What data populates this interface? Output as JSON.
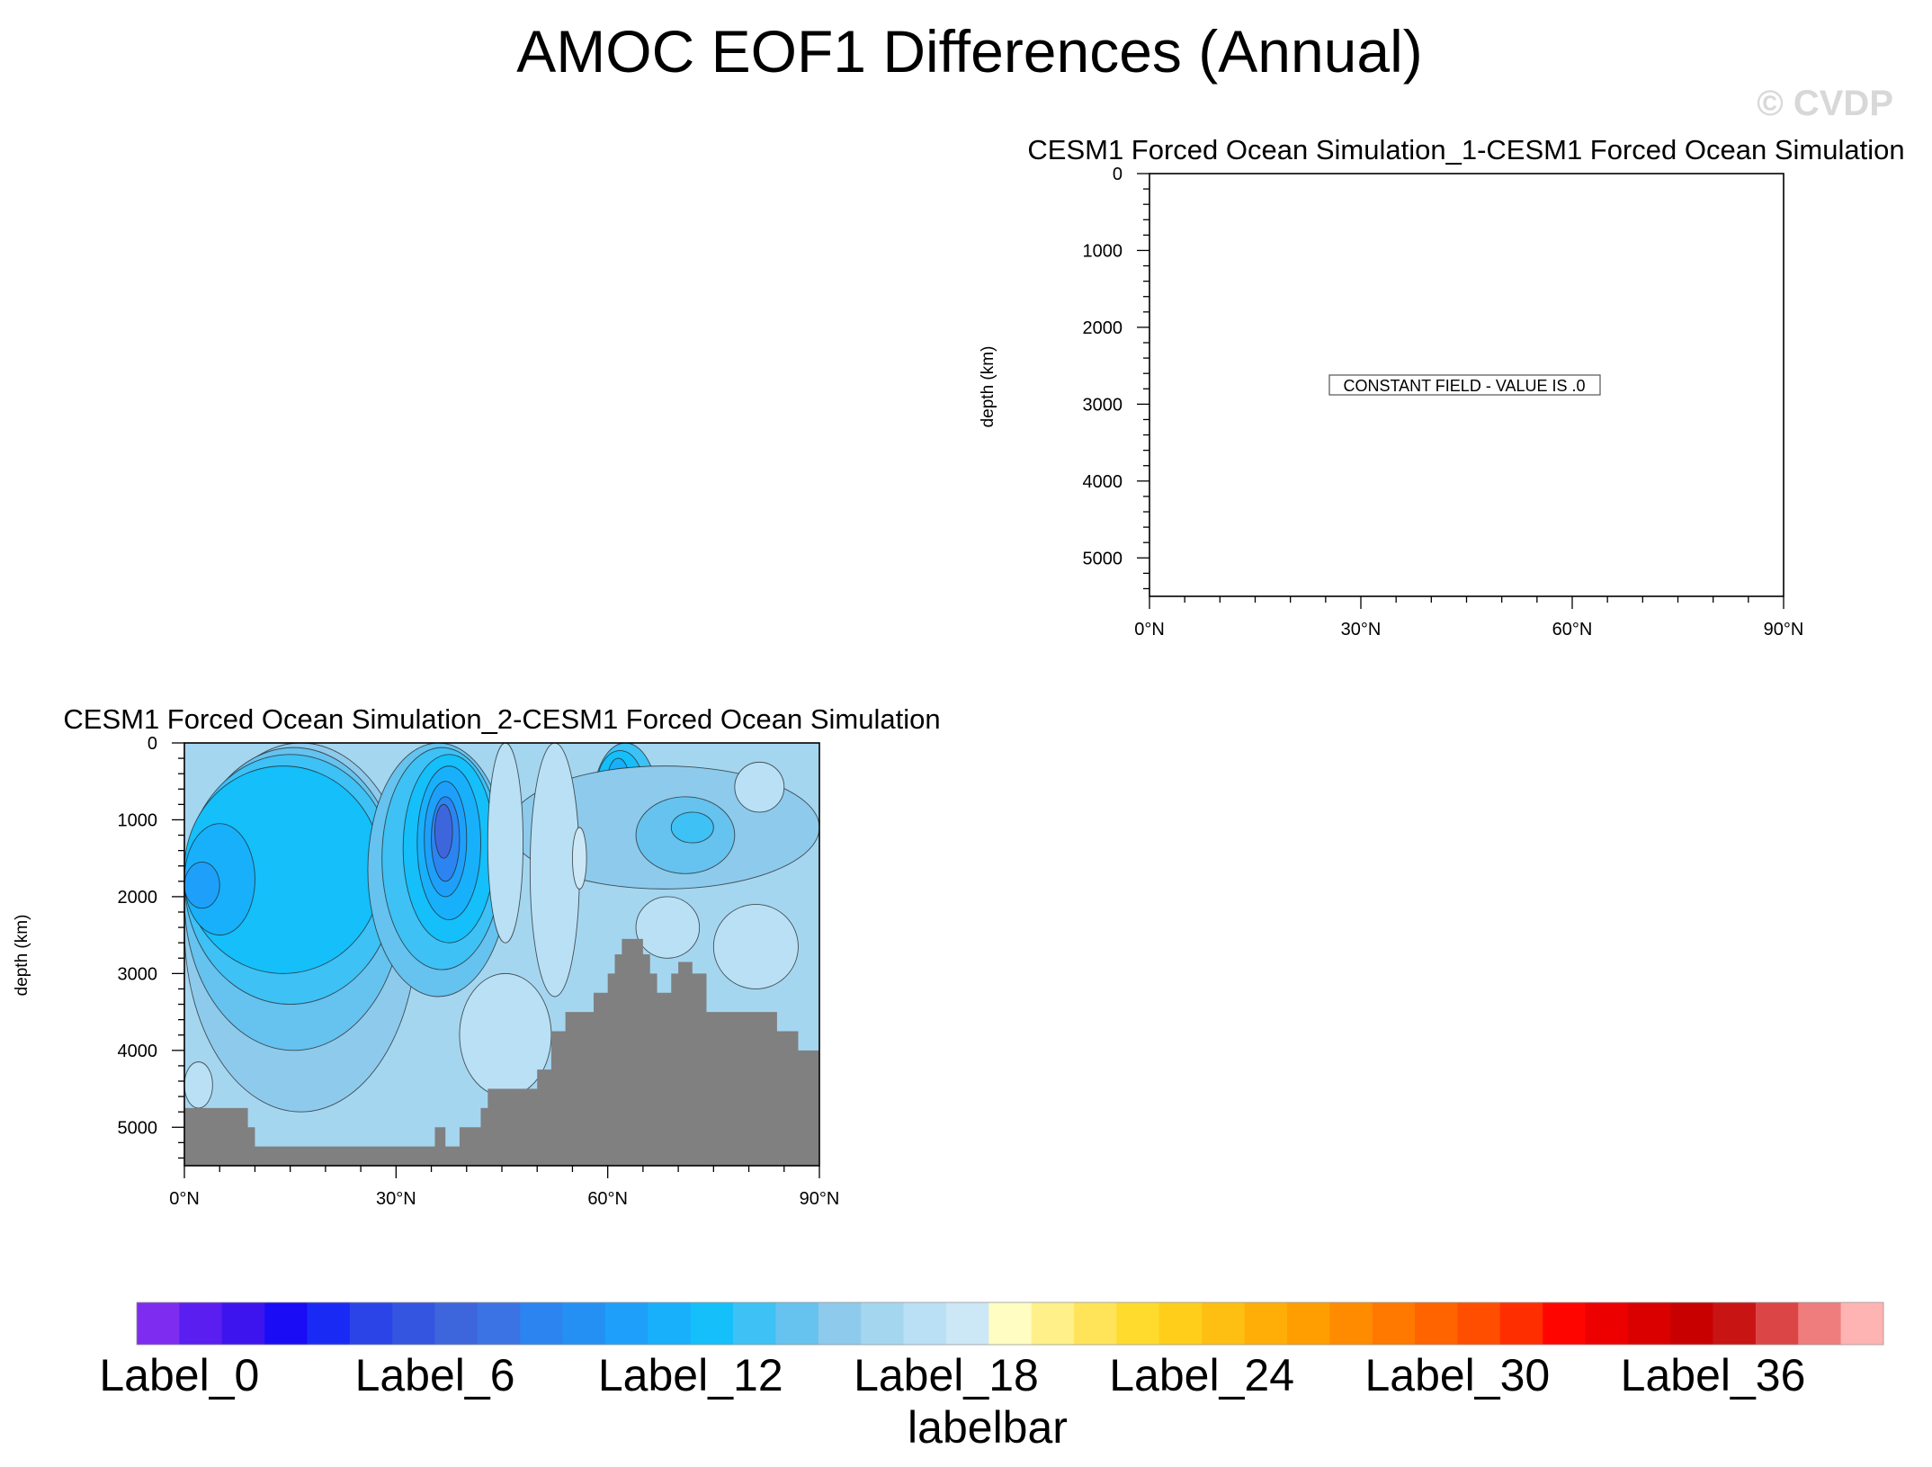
{
  "page": {
    "title": "AMOC EOF1 Differences (Annual)",
    "watermark": "© CVDP"
  },
  "chart_data": [
    {
      "type": "contour",
      "title": "CESM1 Forced Ocean Simulation_1-CESM1 Forced Ocean Simulation",
      "xlabel": "",
      "ylabel": "depth (km)",
      "xlim": [
        0,
        90
      ],
      "ylim": [
        5500,
        0
      ],
      "x_ticks": [
        0,
        30,
        60,
        90
      ],
      "x_tick_labels": [
        "0°N",
        "30°N",
        "60°N",
        "90°N"
      ],
      "y_ticks": [
        0,
        1000,
        2000,
        3000,
        4000,
        5000
      ],
      "y_tick_labels": [
        "0",
        "1000",
        "2000",
        "3000",
        "4000",
        "5000"
      ],
      "note": "CONSTANT FIELD - VALUE IS .0"
    },
    {
      "type": "contour",
      "title": "CESM1 Forced Ocean Simulation_2-CESM1 Forced Ocean Simulation",
      "xlabel": "",
      "ylabel": "depth (km)",
      "xlim": [
        0,
        90
      ],
      "ylim": [
        5500,
        0
      ],
      "x_ticks": [
        0,
        30,
        60,
        90
      ],
      "x_tick_labels": [
        "0°N",
        "30°N",
        "60°N",
        "90°N"
      ],
      "y_ticks": [
        0,
        1000,
        2000,
        3000,
        4000,
        5000
      ],
      "y_tick_labels": [
        "0",
        "1000",
        "2000",
        "3000",
        "4000",
        "5000"
      ],
      "background_level": 17,
      "bathymetry_depth": [
        [
          0,
          4750
        ],
        [
          9,
          5000
        ],
        [
          10,
          5250
        ],
        [
          16,
          5250
        ],
        [
          17,
          5250
        ],
        [
          20,
          5250
        ],
        [
          25,
          5250
        ],
        [
          30,
          5250
        ],
        [
          35,
          5250
        ],
        [
          35.5,
          5000
        ],
        [
          36,
          5000
        ],
        [
          37,
          5250
        ],
        [
          39,
          5000
        ],
        [
          42,
          4750
        ],
        [
          43,
          4500
        ],
        [
          46,
          4500
        ],
        [
          50,
          4250
        ],
        [
          52,
          3750
        ],
        [
          54,
          3500
        ],
        [
          58,
          3250
        ],
        [
          60,
          3000
        ],
        [
          61,
          2750
        ],
        [
          62,
          2550
        ],
        [
          65,
          2750
        ],
        [
          66,
          3000
        ],
        [
          67,
          3250
        ],
        [
          69,
          3000
        ],
        [
          70,
          2850
        ],
        [
          72,
          3000
        ],
        [
          74,
          3500
        ],
        [
          80,
          3500
        ],
        [
          84,
          3750
        ],
        [
          87,
          4000
        ],
        [
          90,
          4000
        ]
      ],
      "contour_regions": [
        {
          "level": 16,
          "x": [
            0,
            33
          ],
          "depth": [
            0,
            4800
          ]
        },
        {
          "level": 15,
          "x": [
            0,
            31
          ],
          "depth": [
            60,
            4000
          ]
        },
        {
          "level": 14,
          "x": [
            0,
            30
          ],
          "depth": [
            150,
            3400
          ]
        },
        {
          "level": 13,
          "x": [
            0,
            28
          ],
          "depth": [
            300,
            3000
          ]
        },
        {
          "level": 12,
          "x": [
            0,
            10
          ],
          "depth": [
            1050,
            2500
          ]
        },
        {
          "level": 11,
          "x": [
            0,
            5
          ],
          "depth": [
            1550,
            2150
          ]
        },
        {
          "level": 15,
          "x": [
            26,
            46
          ],
          "depth": [
            0,
            3300
          ]
        },
        {
          "level": 14,
          "x": [
            28,
            45
          ],
          "depth": [
            60,
            2950
          ]
        },
        {
          "level": 13,
          "x": [
            31,
            44
          ],
          "depth": [
            150,
            2600
          ]
        },
        {
          "level": 12,
          "x": [
            33,
            42
          ],
          "depth": [
            300,
            2300
          ]
        },
        {
          "level": 11,
          "x": [
            34,
            40
          ],
          "depth": [
            500,
            2000
          ]
        },
        {
          "level": 9,
          "x": [
            35,
            39
          ],
          "depth": [
            700,
            1800
          ]
        },
        {
          "level": 7,
          "x": [
            35.5,
            38
          ],
          "depth": [
            800,
            1500
          ]
        },
        {
          "level": 14,
          "x": [
            58,
            67
          ],
          "depth": [
            0,
            1500
          ]
        },
        {
          "level": 13,
          "x": [
            58.5,
            65
          ],
          "depth": [
            100,
            1000
          ]
        },
        {
          "level": 12,
          "x": [
            60,
            63
          ],
          "depth": [
            200,
            750
          ]
        },
        {
          "level": 16,
          "x": [
            46,
            90
          ],
          "depth": [
            300,
            1900
          ]
        },
        {
          "level": 15,
          "x": [
            64,
            78
          ],
          "depth": [
            700,
            1700
          ]
        },
        {
          "level": 14,
          "x": [
            69,
            75
          ],
          "depth": [
            900,
            1300
          ]
        },
        {
          "level": 18,
          "x": [
            43,
            48
          ],
          "depth": [
            0,
            2600
          ]
        },
        {
          "level": 18,
          "x": [
            49,
            56
          ],
          "depth": [
            0,
            3300
          ]
        },
        {
          "level": 19,
          "x": [
            55,
            57
          ],
          "depth": [
            1100,
            1900
          ]
        },
        {
          "level": 18,
          "x": [
            39,
            52
          ],
          "depth": [
            3000,
            4600
          ]
        },
        {
          "level": 18,
          "x": [
            64,
            73
          ],
          "depth": [
            2000,
            2800
          ]
        },
        {
          "level": 18,
          "x": [
            75,
            87
          ],
          "depth": [
            2100,
            3200
          ]
        },
        {
          "level": 18,
          "x": [
            78,
            85
          ],
          "depth": [
            250,
            900
          ]
        },
        {
          "level": 18,
          "x": [
            0,
            4
          ],
          "depth": [
            4150,
            4750
          ]
        }
      ]
    }
  ],
  "labelbar": {
    "title": "labelbar",
    "colors": [
      "#7d2cf0",
      "#5a1ef0",
      "#3d14ee",
      "#1a0cf5",
      "#1a2af5",
      "#2a44e8",
      "#3355e0",
      "#3e66dc",
      "#3b73e4",
      "#2b84f0",
      "#2490f4",
      "#1ea0fa",
      "#18b0fb",
      "#14bffa",
      "#3ec1f5",
      "#66c2ee",
      "#8ecaeb",
      "#a5d6f0",
      "#b9e0f5",
      "#cce7f5",
      "#fffdc2",
      "#fff08a",
      "#ffe45a",
      "#ffdb2e",
      "#ffce1a",
      "#ffbf12",
      "#ffae08",
      "#ff9e00",
      "#ff8c00",
      "#ff7800",
      "#ff6400",
      "#ff4e00",
      "#ff2e00",
      "#ff0500",
      "#ed0000",
      "#da0000",
      "#c80000",
      "#c91414",
      "#dc4545",
      "#ef7d7d",
      "#ffb4b4"
    ],
    "labels": [
      {
        "index": 0,
        "text": "Label_0"
      },
      {
        "index": 6,
        "text": "Label_6"
      },
      {
        "index": 12,
        "text": "Label_12"
      },
      {
        "index": 18,
        "text": "Label_18"
      },
      {
        "index": 24,
        "text": "Label_24"
      },
      {
        "index": 30,
        "text": "Label_30"
      },
      {
        "index": 36,
        "text": "Label_36"
      }
    ]
  }
}
